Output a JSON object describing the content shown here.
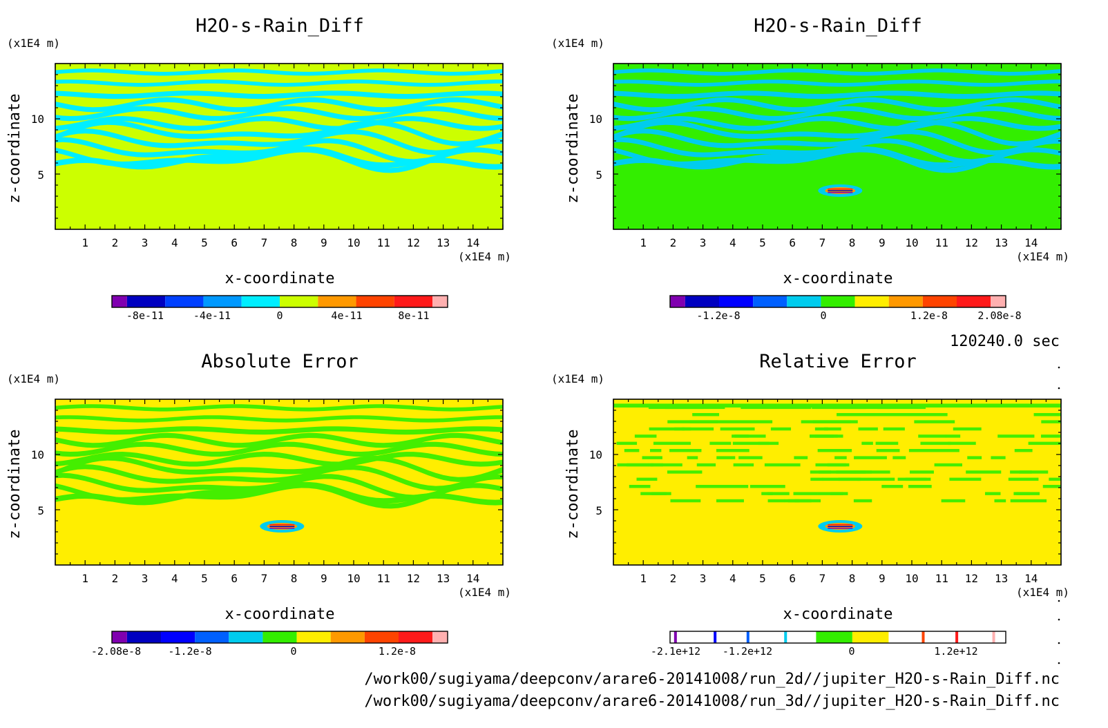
{
  "panels": [
    {
      "title": "H2O-s-Rain_Diff",
      "xlabel": "x-coordinate",
      "ylabel": "z-coordinate",
      "x_unit": "(x1E4 m)",
      "y_unit": "(x1E4 m)",
      "x_ticks": [
        "1",
        "2",
        "3",
        "4",
        "5",
        "6",
        "7",
        "8",
        "9",
        "10",
        "11",
        "12",
        "13",
        "14"
      ],
      "y_ticks": [
        "5",
        "10"
      ],
      "background": "#ccff00",
      "band": "#00eeff",
      "has_blob": false,
      "style": "upper",
      "colorbar": {
        "colors": [
          "#8000b0",
          "#0000c0",
          "#0040ff",
          "#0099ff",
          "#00eeff",
          "#ccff00",
          "#ff9900",
          "#ff4400",
          "#ff1a1a",
          "#ffb0b0"
        ],
        "labels": [
          "-8e-11",
          "-4e-11",
          "0",
          "4e-11",
          "8e-11"
        ],
        "outlined": false
      }
    },
    {
      "title": "H2O-s-Rain_Diff",
      "xlabel": "x-coordinate",
      "ylabel": "z-coordinate",
      "x_unit": "(x1E4 m)",
      "y_unit": "(x1E4 m)",
      "x_ticks": [
        "1",
        "2",
        "3",
        "4",
        "5",
        "6",
        "7",
        "8",
        "9",
        "10",
        "11",
        "12",
        "13",
        "14"
      ],
      "y_ticks": [
        "5",
        "10"
      ],
      "background": "#33ee00",
      "band": "#00ccee",
      "has_blob": true,
      "style": "upper",
      "colorbar": {
        "colors": [
          "#8000b0",
          "#0000c0",
          "#0000ff",
          "#0060ff",
          "#00ccee",
          "#33ee00",
          "#ffee00",
          "#ff9900",
          "#ff4400",
          "#ff1a1a",
          "#ffb0b0"
        ],
        "labels": [
          "-1.2e-8",
          "0",
          "1.2e-8",
          "2.08e-8"
        ],
        "outlined": false
      }
    },
    {
      "title": "Absolute Error",
      "xlabel": "x-coordinate",
      "ylabel": "z-coordinate",
      "x_unit": "(x1E4 m)",
      "y_unit": "(x1E4 m)",
      "x_ticks": [
        "1",
        "2",
        "3",
        "4",
        "5",
        "6",
        "7",
        "8",
        "9",
        "10",
        "11",
        "12",
        "13",
        "14"
      ],
      "y_ticks": [
        "5",
        "10"
      ],
      "background": "#ffee00",
      "band": "#44ee00",
      "has_blob": true,
      "style": "upper",
      "colorbar": {
        "colors": [
          "#8000b0",
          "#0000c0",
          "#0000ff",
          "#0060ff",
          "#00ccee",
          "#33ee00",
          "#ffee00",
          "#ff9900",
          "#ff4400",
          "#ff1a1a",
          "#ffb0b0"
        ],
        "labels": [
          "-2.08e-8",
          "-1.2e-8",
          "0",
          "1.2e-8"
        ],
        "outlined": false
      }
    },
    {
      "title": "Relative Error",
      "xlabel": "x-coordinate",
      "ylabel": "z-coordinate",
      "x_unit": "(x1E4 m)",
      "y_unit": "(x1E4 m)",
      "x_ticks": [
        "1",
        "2",
        "3",
        "4",
        "5",
        "6",
        "7",
        "8",
        "9",
        "10",
        "11",
        "12",
        "13",
        "14"
      ],
      "y_ticks": [
        "5",
        "10"
      ],
      "background": "#ffee00",
      "band": "#44ee00",
      "has_blob": true,
      "style": "scattered",
      "colorbar": {
        "colors": [
          "#8000b0",
          "#0000c0",
          "#0000ff",
          "#0060ff",
          "#00ccee",
          "#33ee00",
          "#ffee00",
          "#ff9900",
          "#ff4400",
          "#ff1a1a",
          "#ffb0b0"
        ],
        "labels": [
          "-2.1e+12",
          "-1.2e+12",
          "0",
          "1.2e+12"
        ],
        "outlined": true
      }
    }
  ],
  "time_label": "120240.0 sec",
  "files": [
    "/work00/sugiyama/deepconv/arare6-20141008/run_2d//jupiter_H2O-s-Rain_Diff.nc",
    "/work00/sugiyama/deepconv/arare6-20141008/run_3d//jupiter_H2O-s-Rain_Diff.nc"
  ],
  "chart_data": [
    {
      "type": "heatmap",
      "title": "H2O-s-Rain_Diff",
      "xlabel": "x-coordinate",
      "ylabel": "z-coordinate",
      "xlim": [
        0,
        15
      ],
      "ylim": [
        0,
        15
      ],
      "colorbar_range": [
        -1e-10,
        1e-10
      ],
      "colorbar_ticks": [
        -8e-11,
        -4e-11,
        0,
        4e-11,
        8e-11
      ],
      "grid": false
    },
    {
      "type": "heatmap",
      "title": "H2O-s-Rain_Diff",
      "xlabel": "x-coordinate",
      "ylabel": "z-coordinate",
      "xlim": [
        0,
        15
      ],
      "ylim": [
        0,
        15
      ],
      "colorbar_range": [
        -2.08e-08,
        2.08e-08
      ],
      "colorbar_ticks": [
        -1.2e-08,
        0,
        1.2e-08,
        2.08e-08
      ],
      "grid": false
    },
    {
      "type": "heatmap",
      "title": "Absolute Error",
      "xlabel": "x-coordinate",
      "ylabel": "z-coordinate",
      "xlim": [
        0,
        15
      ],
      "ylim": [
        0,
        15
      ],
      "colorbar_range": [
        -2.08e-08,
        2.08e-08
      ],
      "colorbar_ticks": [
        -2.08e-08,
        -1.2e-08,
        0,
        1.2e-08
      ],
      "grid": false
    },
    {
      "type": "heatmap",
      "title": "Relative Error",
      "xlabel": "x-coordinate",
      "ylabel": "z-coordinate",
      "xlim": [
        0,
        15
      ],
      "ylim": [
        0,
        15
      ],
      "colorbar_range": [
        -2100000000000.0,
        2100000000000.0
      ],
      "colorbar_ticks": [
        -2100000000000.0,
        -1200000000000.0,
        0,
        1200000000000.0
      ],
      "grid": false
    }
  ]
}
